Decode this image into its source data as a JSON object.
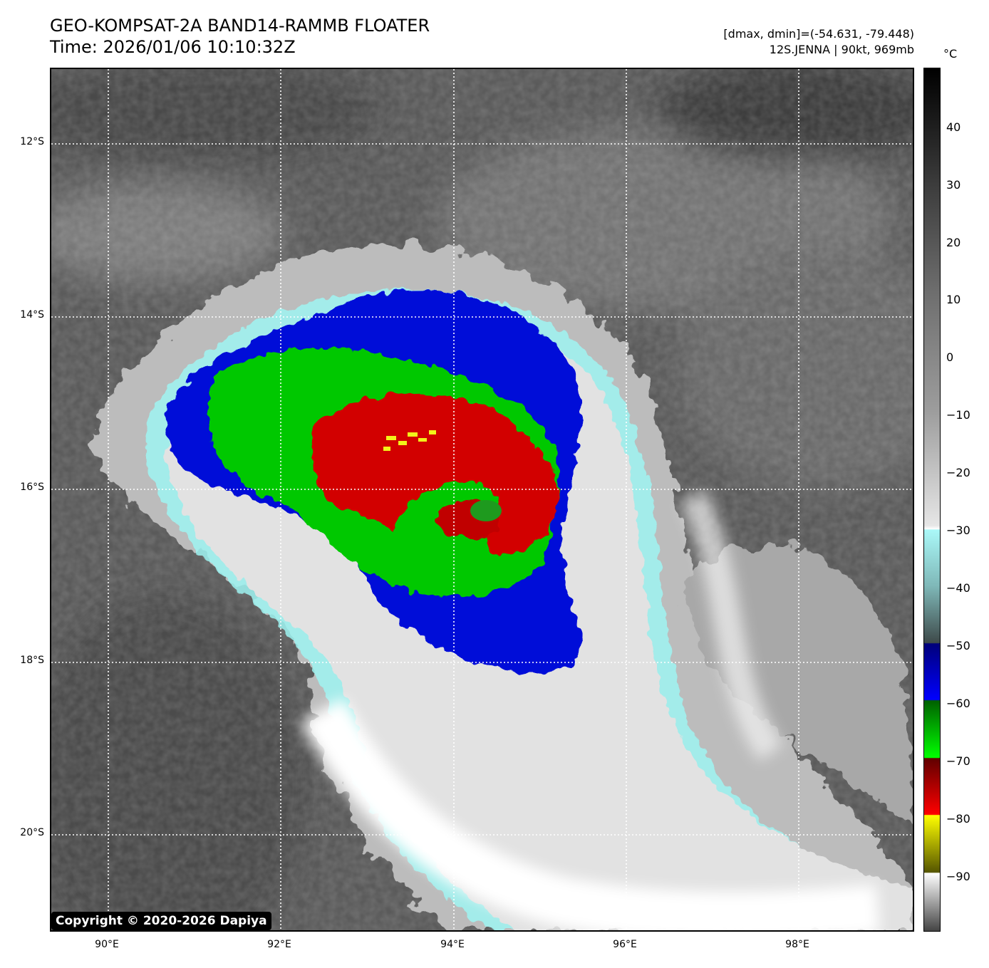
{
  "header": {
    "title_line1": "GEO-KOMPSAT-2A BAND14-RAMMB FLOATER",
    "title_line2": "Time: 2026/01/06 10:10:32Z",
    "info_line1": "[dmax, dmin]=(-54.631, -79.448)",
    "info_line2": "12S.JENNA | 90kt, 969mb"
  },
  "map": {
    "lat_labels": [
      "12°S",
      "14°S",
      "16°S",
      "18°S",
      "20°S"
    ],
    "lon_labels": [
      "90°E",
      "92°E",
      "94°E",
      "96°E",
      "98°E"
    ]
  },
  "colorbar": {
    "unit": "°C",
    "ticks": [
      "40",
      "30",
      "20",
      "10",
      "0",
      "−10",
      "−20",
      "−30",
      "−40",
      "−50",
      "−60",
      "−70",
      "−80",
      "−90"
    ]
  },
  "copyright": "Copyright © 2020-2026 Dapiya"
}
